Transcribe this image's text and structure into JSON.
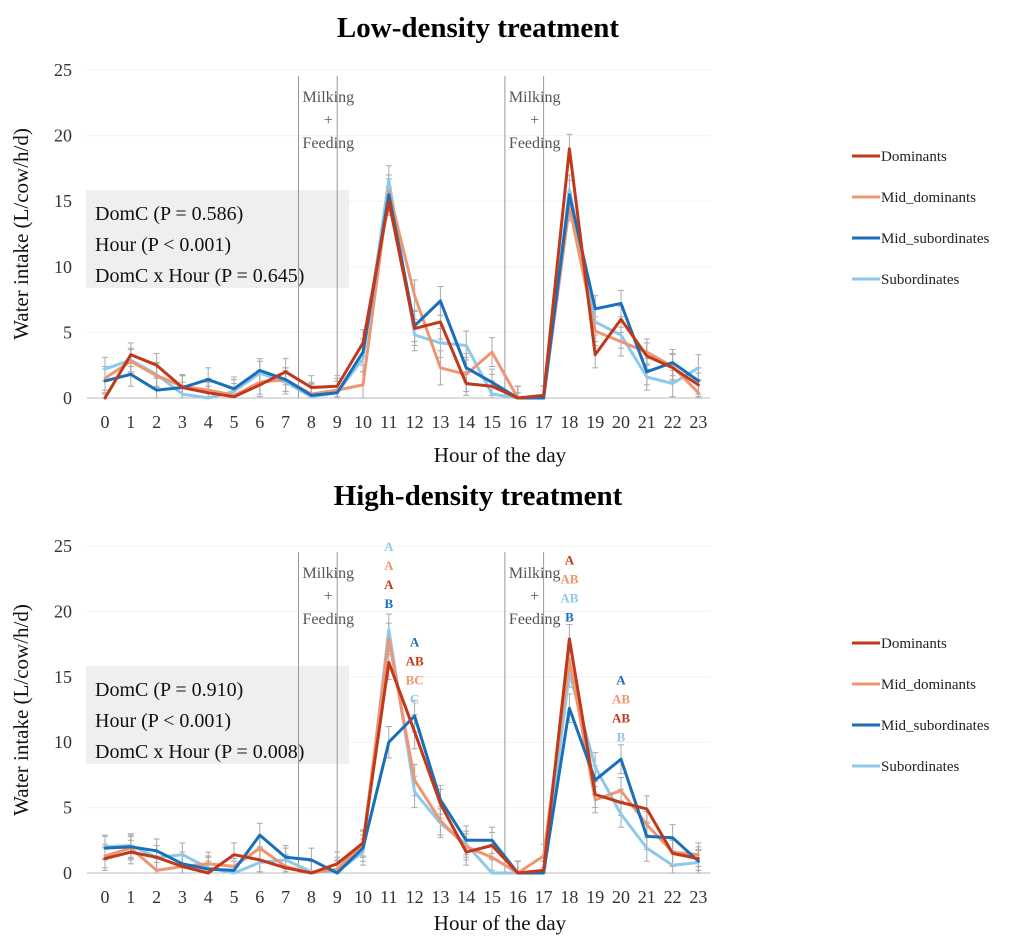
{
  "chart_data": [
    {
      "type": "line",
      "title": "Low-density treatment",
      "xlabel": "Hour of the day",
      "ylabel": "Water intake (L/cow/h/d)",
      "ylim": [
        0,
        25
      ],
      "yticks": [
        0,
        5,
        10,
        15,
        20,
        25
      ],
      "x": [
        0,
        1,
        2,
        3,
        4,
        5,
        6,
        7,
        8,
        9,
        10,
        11,
        12,
        13,
        14,
        15,
        16,
        17,
        18,
        19,
        20,
        21,
        22,
        23
      ],
      "grid": false,
      "legend_position": "right",
      "events": [
        {
          "x": 8.5,
          "label_lines": [
            "Milking",
            "+",
            "Feeding"
          ],
          "lines_at": [
            7.5,
            9.0
          ]
        },
        {
          "x": 16.5,
          "label_lines": [
            "Milking",
            "+",
            "Feeding"
          ],
          "lines_at": [
            15.5,
            17.0
          ]
        }
      ],
      "stats_box": [
        "DomC (P = 0.586)",
        "Hour (P < 0.001)",
        "DomC x Hour (P = 0.645)"
      ],
      "series": [
        {
          "name": "Dominants",
          "color": "#c0391b",
          "values": [
            0.0,
            3.3,
            2.5,
            0.8,
            0.4,
            0.1,
            1.0,
            2.0,
            0.8,
            0.9,
            4.2,
            15.0,
            5.3,
            5.8,
            1.1,
            0.9,
            0.0,
            0.2,
            19.0,
            3.3,
            6.0,
            3.2,
            2.3,
            1.0
          ],
          "error": [
            0.3,
            0.9,
            0.9,
            0.9,
            0.8,
            0.5,
            0.9,
            1.0,
            0.9,
            0.8,
            1.0,
            1.1,
            1.3,
            1.3,
            0.9,
            0.9,
            0.4,
            0.7,
            1.1,
            1.0,
            1.0,
            1.0,
            1.0,
            0.9
          ]
        },
        {
          "name": "Mid_dominants",
          "color": "#ee9672",
          "values": [
            1.5,
            2.8,
            1.7,
            0.9,
            0.6,
            0.2,
            1.2,
            1.4,
            0.3,
            0.6,
            1.0,
            15.8,
            7.8,
            2.3,
            1.8,
            3.5,
            0.0,
            0.0,
            14.6,
            5.1,
            4.3,
            3.5,
            2.4,
            0.4
          ],
          "error": [
            0.9,
            0.9,
            0.9,
            0.9,
            0.9,
            0.9,
            0.9,
            0.9,
            0.9,
            0.9,
            1.0,
            1.2,
            1.2,
            1.3,
            1.3,
            1.1,
            0.9,
            0.9,
            1.1,
            1.1,
            1.1,
            1.0,
            1.0,
            1.0
          ]
        },
        {
          "name": "Mid_subordinates",
          "color": "#1a6fba",
          "values": [
            1.3,
            1.8,
            0.6,
            0.8,
            1.4,
            0.7,
            2.1,
            1.4,
            0.2,
            0.4,
            3.5,
            15.5,
            5.5,
            7.4,
            2.3,
            1.2,
            0.0,
            0.0,
            15.5,
            6.8,
            7.2,
            2.0,
            2.7,
            1.3
          ],
          "error": [
            0.9,
            0.9,
            0.9,
            0.9,
            0.9,
            0.9,
            0.9,
            0.9,
            0.9,
            0.9,
            1.0,
            1.2,
            1.2,
            1.1,
            1.1,
            1.0,
            0.9,
            0.9,
            1.1,
            1.0,
            1.0,
            1.0,
            1.0,
            1.0
          ]
        },
        {
          "name": "Subordinates",
          "color": "#8cc9eb",
          "values": [
            2.2,
            2.9,
            1.8,
            0.3,
            0.0,
            0.5,
            1.9,
            1.2,
            0.1,
            0.4,
            3.0,
            16.6,
            4.8,
            4.2,
            4.0,
            0.3,
            0.0,
            0.0,
            15.9,
            5.8,
            4.8,
            1.6,
            1.1,
            2.3
          ],
          "error": [
            0.9,
            0.9,
            0.9,
            0.9,
            0.9,
            0.9,
            0.9,
            0.9,
            0.9,
            0.9,
            1.0,
            1.1,
            1.2,
            1.1,
            1.1,
            1.0,
            0.9,
            0.9,
            1.1,
            1.0,
            1.0,
            1.0,
            1.0,
            1.0
          ]
        }
      ]
    },
    {
      "type": "line",
      "title": "High-density treatment",
      "xlabel": "Hour of the day",
      "ylabel": "Water intake (L/cow/h/d)",
      "ylim": [
        0,
        25
      ],
      "yticks": [
        0,
        5,
        10,
        15,
        20,
        25
      ],
      "x": [
        0,
        1,
        2,
        3,
        4,
        5,
        6,
        7,
        8,
        9,
        10,
        11,
        12,
        13,
        14,
        15,
        16,
        17,
        18,
        19,
        20,
        21,
        22,
        23
      ],
      "grid": false,
      "legend_position": "right",
      "events": [
        {
          "x": 8.5,
          "label_lines": [
            "Milking",
            "+",
            "Feeding"
          ],
          "lines_at": [
            7.5,
            9.0
          ]
        },
        {
          "x": 16.5,
          "label_lines": [
            "Milking",
            "+",
            "Feeding"
          ],
          "lines_at": [
            15.5,
            17.0
          ]
        }
      ],
      "stats_box": [
        "DomC (P = 0.910)",
        "Hour (P < 0.001)",
        "DomC x Hour (P = 0.008)"
      ],
      "annotations": [
        {
          "x": 11,
          "y_top": 24.6,
          "labels": [
            {
              "text": "A",
              "color": "#8cc9eb"
            },
            {
              "text": "A",
              "color": "#ee9672"
            },
            {
              "text": "A",
              "color": "#c0391b"
            },
            {
              "text": "B",
              "color": "#1a6fba"
            }
          ]
        },
        {
          "x": 12,
          "y_top": 17.3,
          "labels": [
            {
              "text": "A",
              "color": "#1a6fba"
            },
            {
              "text": "AB",
              "color": "#c0391b"
            },
            {
              "text": "BC",
              "color": "#ee9672"
            },
            {
              "text": "C",
              "color": "#8cc9eb"
            }
          ]
        },
        {
          "x": 18,
          "y_top": 23.6,
          "labels": [
            {
              "text": "A",
              "color": "#c0391b"
            },
            {
              "text": "AB",
              "color": "#ee9672"
            },
            {
              "text": "AB",
              "color": "#8cc9eb"
            },
            {
              "text": "B",
              "color": "#1a6fba"
            }
          ]
        },
        {
          "x": 20,
          "y_top": 14.4,
          "labels": [
            {
              "text": "A",
              "color": "#1a6fba"
            },
            {
              "text": "AB",
              "color": "#ee9672"
            },
            {
              "text": "AB",
              "color": "#c0391b"
            },
            {
              "text": "B",
              "color": "#8cc9eb"
            }
          ]
        }
      ],
      "series": [
        {
          "name": "Dominants",
          "color": "#c0391b",
          "values": [
            1.1,
            1.6,
            1.2,
            0.5,
            0.0,
            1.4,
            1.0,
            0.4,
            0.0,
            0.7,
            2.3,
            16.1,
            10.8,
            5.3,
            1.6,
            2.1,
            0.0,
            0.2,
            17.9,
            6.0,
            5.4,
            4.9,
            1.5,
            1.1
          ],
          "error": [
            0.9,
            0.9,
            0.9,
            0.9,
            0.9,
            0.9,
            0.9,
            0.9,
            0.9,
            0.9,
            1.0,
            1.3,
            1.3,
            1.1,
            1.0,
            1.0,
            0.9,
            0.9,
            1.1,
            1.0,
            1.0,
            1.0,
            1.0,
            0.9
          ]
        },
        {
          "name": "Mid_dominants",
          "color": "#ee9672",
          "values": [
            1.3,
            1.9,
            0.2,
            0.5,
            0.7,
            0.5,
            1.9,
            0.5,
            0.0,
            0.3,
            2.2,
            17.9,
            7.1,
            4.0,
            2.0,
            1.2,
            0.0,
            1.3,
            16.3,
            5.6,
            6.3,
            3.7,
            1.6,
            1.4
          ],
          "error": [
            0.9,
            0.9,
            0.9,
            0.9,
            0.9,
            0.9,
            0.9,
            0.9,
            0.9,
            0.9,
            1.0,
            1.2,
            1.2,
            1.1,
            1.0,
            1.0,
            0.9,
            0.9,
            1.1,
            1.0,
            1.0,
            1.0,
            1.0,
            0.9
          ]
        },
        {
          "name": "Mid_subordinates",
          "color": "#1a6fba",
          "values": [
            1.9,
            2.0,
            1.7,
            0.7,
            0.3,
            0.2,
            2.9,
            1.2,
            1.0,
            0.0,
            1.9,
            10.0,
            12.0,
            5.6,
            2.5,
            2.5,
            0.0,
            0.0,
            12.6,
            7.1,
            8.7,
            2.8,
            2.7,
            0.9
          ],
          "error": [
            0.9,
            0.9,
            0.9,
            0.9,
            0.9,
            0.9,
            0.9,
            0.9,
            0.9,
            0.9,
            1.0,
            1.2,
            1.2,
            1.1,
            1.1,
            1.0,
            0.9,
            0.9,
            1.1,
            1.1,
            1.1,
            1.0,
            1.0,
            0.9
          ]
        },
        {
          "name": "Subordinates",
          "color": "#8cc9eb",
          "values": [
            2.0,
            2.1,
            1.2,
            1.4,
            0.4,
            0.0,
            0.8,
            1.0,
            0.1,
            0.1,
            1.6,
            18.6,
            6.2,
            3.8,
            2.2,
            0.0,
            0.0,
            0.0,
            15.3,
            8.1,
            4.5,
            1.9,
            0.6,
            0.8
          ],
          "error": [
            0.9,
            0.9,
            0.9,
            0.9,
            0.9,
            0.9,
            0.9,
            0.9,
            0.9,
            0.9,
            1.0,
            1.2,
            1.2,
            1.1,
            1.0,
            1.0,
            0.9,
            0.9,
            1.1,
            1.1,
            1.0,
            1.0,
            1.0,
            0.9
          ]
        }
      ]
    }
  ]
}
